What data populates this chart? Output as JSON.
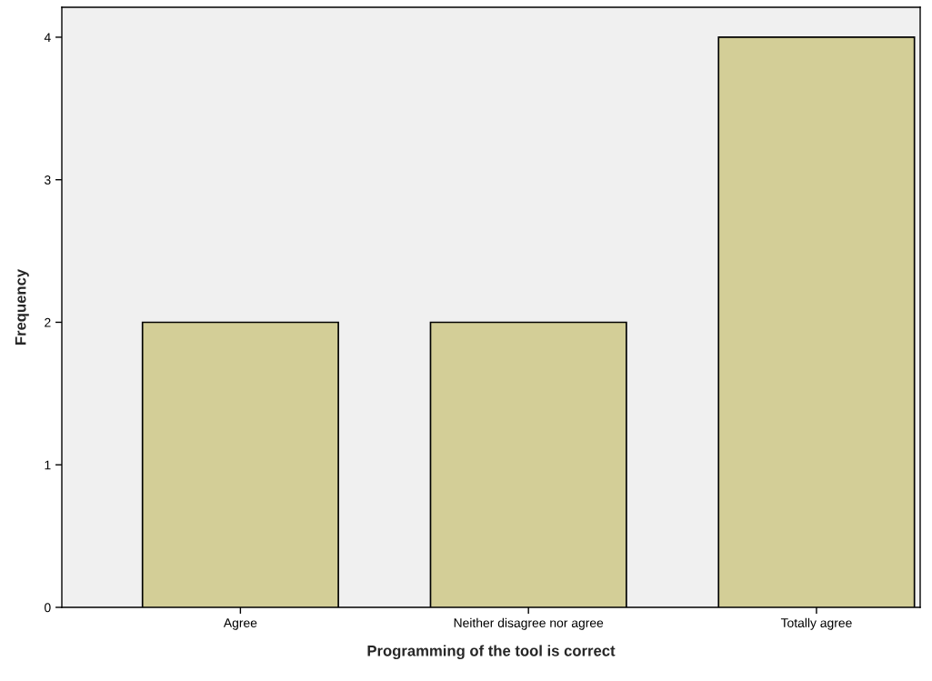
{
  "chart_data": {
    "type": "bar",
    "xlabel": "Programming of the tool is correct",
    "ylabel": "Frequency",
    "categories": [
      "Agree",
      "Neither disagree nor agree",
      "Totally agree"
    ],
    "values": [
      2,
      2,
      4
    ],
    "color": "#d3ce97",
    "ylim": [
      0,
      4.21
    ],
    "yticks": [
      0,
      1,
      2,
      3,
      4
    ],
    "grid": false,
    "legend": false
  }
}
